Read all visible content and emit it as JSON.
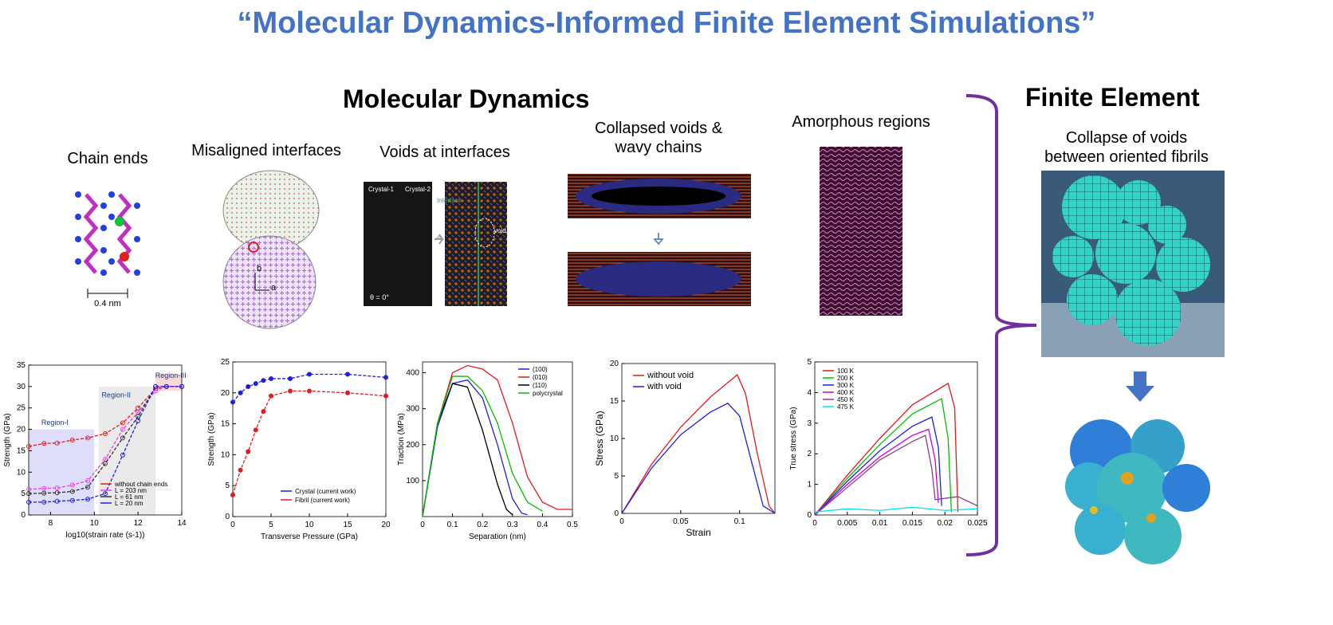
{
  "title": "“Molecular Dynamics-Informed Finite Element Simulations”",
  "md_heading": "Molecular Dynamics",
  "fe_heading": "Finite Element",
  "labels": {
    "chain_ends": "Chain ends",
    "misaligned": "Misaligned interfaces",
    "voids": "Voids at interfaces",
    "collapsed_1": "Collapsed voids &",
    "collapsed_2": "wavy chains",
    "amorphous": "Amorphous regions",
    "fe_1": "Collapse of voids",
    "fe_2": "between oriented fibrils"
  },
  "illustrations": {
    "chain_scale": "0.4 nm",
    "crystal_1": "Crystal-1",
    "crystal_2": "Crystal-2",
    "interface": "Interface",
    "void": "void",
    "theta": "θ = 0°"
  },
  "colors": {
    "title": "#4472c4",
    "brace": "#7030a0",
    "red": "#e41a1c",
    "blue": "#1f1fe0",
    "green": "#00c000",
    "cyan": "#00e5ee",
    "fe": "#30d5c8"
  },
  "chart_data": [
    {
      "type": "line",
      "xlabel": "log10(strain rate (s-1))",
      "ylabel": "Strength (GPa)",
      "xlim": [
        7,
        14
      ],
      "ylim": [
        0,
        35
      ],
      "xticks": [
        8,
        10,
        12,
        14
      ],
      "yticks": [
        0,
        5,
        10,
        15,
        20,
        25,
        30,
        35
      ],
      "regions": [
        "Region-I",
        "Region-II",
        "Region-III"
      ],
      "series": [
        {
          "name": "without chain ends",
          "x": [
            7,
            7.7,
            8.3,
            9,
            9.7,
            10.5,
            11.3,
            12,
            12.8,
            13.3,
            14
          ],
          "values": [
            16,
            16.7,
            16.8,
            17.5,
            18,
            19,
            21.5,
            25,
            29.5,
            30,
            30
          ]
        },
        {
          "name": "L = 203 nm",
          "x": [
            7,
            7.7,
            8.3,
            9,
            9.7,
            10.5,
            11.3,
            12,
            12.8,
            13.3,
            14
          ],
          "values": [
            6,
            6.2,
            6.3,
            7,
            8,
            13,
            20,
            24,
            29,
            30,
            30
          ]
        },
        {
          "name": "L = 61 nm",
          "x": [
            7,
            7.7,
            8.3,
            9,
            9.7,
            10.5,
            11.3,
            12,
            12.8,
            13.3,
            14
          ],
          "values": [
            5,
            5.1,
            5.2,
            5.5,
            6.5,
            12,
            18,
            23,
            30,
            30,
            30
          ]
        },
        {
          "name": "L = 20 nm",
          "x": [
            7,
            7.7,
            8.3,
            9,
            9.7,
            10.5,
            11.3,
            12,
            12.8,
            13.3,
            14
          ],
          "values": [
            3,
            3,
            3.2,
            3.4,
            3.7,
            5,
            14,
            22,
            30,
            30,
            30
          ]
        }
      ]
    },
    {
      "type": "line",
      "xlabel": "Transverse Pressure (GPa)",
      "ylabel": "Strength (GPa)",
      "xlim": [
        0,
        20
      ],
      "ylim": [
        0,
        25
      ],
      "xticks": [
        0,
        5,
        10,
        15,
        20
      ],
      "yticks": [
        0,
        5,
        10,
        15,
        20,
        25
      ],
      "series": [
        {
          "name": "Crystal (current work)",
          "x": [
            0,
            1,
            2,
            3,
            4,
            5,
            7.5,
            10,
            15,
            20
          ],
          "values": [
            18.5,
            20,
            21,
            21.5,
            22,
            22.3,
            22.3,
            23,
            23,
            22.5
          ]
        },
        {
          "name": "Fibril (current work)",
          "x": [
            0,
            1,
            2,
            3,
            4,
            5,
            7.5,
            10,
            15,
            20
          ],
          "values": [
            3.5,
            7.5,
            10.5,
            14,
            17,
            19.5,
            20.3,
            20.3,
            20,
            19.5
          ]
        }
      ]
    },
    {
      "type": "line",
      "xlabel": "Separation (nm)",
      "ylabel": "Traction (MPa)",
      "xlim": [
        0,
        0.5
      ],
      "ylim": [
        0,
        430
      ],
      "xticks": [
        0,
        0.1,
        0.2,
        0.3,
        0.4,
        0.5
      ],
      "yticks": [
        100,
        200,
        300,
        400
      ],
      "series": [
        {
          "name": "(100)",
          "x": [
            0,
            0.05,
            0.1,
            0.15,
            0.2,
            0.25,
            0.3,
            0.33,
            0.35
          ],
          "values": [
            0,
            250,
            370,
            380,
            330,
            200,
            50,
            10,
            5
          ]
        },
        {
          "name": "(010)",
          "x": [
            0,
            0.05,
            0.1,
            0.15,
            0.2,
            0.25,
            0.3,
            0.35,
            0.4,
            0.45,
            0.5
          ],
          "values": [
            0,
            260,
            400,
            420,
            410,
            380,
            260,
            110,
            40,
            20,
            20
          ]
        },
        {
          "name": "(110)",
          "x": [
            0,
            0.05,
            0.1,
            0.15,
            0.2,
            0.25,
            0.28,
            0.3
          ],
          "values": [
            0,
            260,
            370,
            360,
            240,
            90,
            20,
            5
          ]
        },
        {
          "name": "polycrystal",
          "x": [
            0,
            0.05,
            0.1,
            0.15,
            0.2,
            0.25,
            0.3,
            0.35,
            0.4
          ],
          "values": [
            0,
            260,
            390,
            390,
            350,
            260,
            120,
            40,
            15
          ]
        }
      ]
    },
    {
      "type": "line",
      "xlabel": "Strain",
      "ylabel": "Stress (GPa)",
      "xlim": [
        0,
        0.13
      ],
      "ylim": [
        0,
        20
      ],
      "xticks": [
        0,
        0.05,
        0.1
      ],
      "yticks": [
        0,
        5,
        10,
        15,
        20
      ],
      "series": [
        {
          "name": "without void",
          "x": [
            0,
            0.025,
            0.05,
            0.075,
            0.098,
            0.105,
            0.115,
            0.125,
            0.13
          ],
          "values": [
            0,
            6.5,
            11.5,
            15.5,
            18.5,
            16,
            8,
            1,
            0
          ]
        },
        {
          "name": "with void",
          "x": [
            0,
            0.025,
            0.05,
            0.075,
            0.09,
            0.1,
            0.11,
            0.12,
            0.13
          ],
          "values": [
            0,
            6,
            10.5,
            13.5,
            14.7,
            13,
            7,
            1,
            0
          ]
        }
      ]
    },
    {
      "type": "line",
      "xlabel": "",
      "ylabel": "True stress (GPa)",
      "xlim": [
        0,
        0.025
      ],
      "ylim": [
        0,
        5
      ],
      "xticks": [
        0,
        0.005,
        0.01,
        0.015,
        0.02,
        0.025
      ],
      "yticks": [
        0,
        1,
        2,
        3,
        4,
        5
      ],
      "series": [
        {
          "name": "100 K",
          "x": [
            0,
            0.005,
            0.01,
            0.015,
            0.0205,
            0.0215,
            0.022
          ],
          "values": [
            0,
            1.3,
            2.5,
            3.6,
            4.3,
            3.5,
            0.1
          ]
        },
        {
          "name": "200 K",
          "x": [
            0,
            0.005,
            0.01,
            0.015,
            0.0195,
            0.0205,
            0.021
          ],
          "values": [
            0,
            1.2,
            2.3,
            3.3,
            3.8,
            2.5,
            0.1
          ]
        },
        {
          "name": "300 K",
          "x": [
            0,
            0.005,
            0.01,
            0.015,
            0.018,
            0.019,
            0.0195
          ],
          "values": [
            0,
            1.1,
            2.1,
            2.9,
            3.2,
            2.2,
            0.3
          ]
        },
        {
          "name": "400 K",
          "x": [
            0,
            0.005,
            0.01,
            0.015,
            0.0175,
            0.0185,
            0.019
          ],
          "values": [
            0,
            1.0,
            1.9,
            2.6,
            2.8,
            1.8,
            0.4
          ]
        },
        {
          "name": "450 K",
          "x": [
            0,
            0.005,
            0.01,
            0.015,
            0.017,
            0.018,
            0.0185,
            0.022,
            0.025
          ],
          "values": [
            0,
            0.9,
            1.8,
            2.4,
            2.6,
            1.5,
            0.5,
            0.6,
            0.3
          ]
        },
        {
          "name": "475 K",
          "x": [
            0,
            0.005,
            0.01,
            0.015,
            0.02,
            0.025
          ],
          "values": [
            0.1,
            0.2,
            0.15,
            0.25,
            0.15,
            0.2
          ]
        }
      ]
    }
  ]
}
